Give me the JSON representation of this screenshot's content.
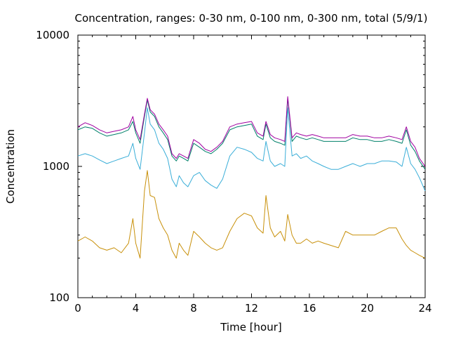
{
  "chart_data": {
    "type": "line",
    "title": "Concentration, ranges: 0-30 nm, 0-100 nm, 0-300 nm, total (5/9/1)",
    "xlabel": "Time [hour]",
    "ylabel": "Concentration",
    "xlim": [
      0,
      24
    ],
    "ylim": [
      100,
      10000
    ],
    "yscale": "log",
    "grid": false,
    "x_ticks": [
      "0",
      "4",
      "8",
      "12",
      "16",
      "20",
      "24"
    ],
    "y_ticks": [
      "100",
      "1000",
      "10000"
    ],
    "colors": [
      "#c8900a",
      "#3aaed8",
      "#00806a",
      "#a000a0"
    ],
    "x": [
      0,
      0.5,
      1,
      1.5,
      2,
      2.5,
      3,
      3.5,
      3.8,
      4,
      4.3,
      4.6,
      4.8,
      5,
      5.3,
      5.6,
      5.9,
      6.2,
      6.5,
      6.8,
      7,
      7.3,
      7.6,
      8,
      8.4,
      8.8,
      9.2,
      9.6,
      10,
      10.5,
      11,
      11.5,
      12,
      12.4,
      12.8,
      13,
      13.3,
      13.6,
      14,
      14.3,
      14.5,
      14.8,
      15.1,
      15.4,
      15.8,
      16.2,
      16.6,
      17,
      17.5,
      18,
      18.5,
      19,
      19.5,
      20,
      20.5,
      21,
      21.5,
      22,
      22.4,
      22.7,
      23,
      23.3,
      23.6,
      24
    ],
    "series": [
      {
        "values": [
          270,
          290,
          270,
          240,
          230,
          240,
          220,
          260,
          400,
          260,
          200,
          650,
          930,
          600,
          580,
          400,
          340,
          300,
          230,
          200,
          260,
          230,
          210,
          320,
          290,
          260,
          240,
          230,
          240,
          320,
          400,
          440,
          420,
          340,
          310,
          600,
          340,
          290,
          320,
          270,
          430,
          300,
          260,
          260,
          280,
          260,
          270,
          260,
          250,
          240,
          320,
          300,
          300,
          300,
          300,
          320,
          340,
          340,
          280,
          250,
          230,
          220,
          210,
          200
        ]
      },
      {
        "values": [
          1200,
          1250,
          1200,
          1120,
          1050,
          1100,
          1150,
          1200,
          1500,
          1150,
          950,
          1800,
          2800,
          2100,
          1900,
          1500,
          1350,
          1150,
          800,
          700,
          850,
          750,
          700,
          850,
          900,
          780,
          720,
          680,
          800,
          1200,
          1400,
          1350,
          1280,
          1150,
          1100,
          1550,
          1100,
          1000,
          1050,
          1000,
          2800,
          1200,
          1250,
          1150,
          1200,
          1100,
          1050,
          1000,
          950,
          950,
          1000,
          1050,
          1000,
          1050,
          1050,
          1100,
          1100,
          1080,
          1000,
          1400,
          1050,
          950,
          820,
          650
        ]
      },
      {
        "values": [
          1900,
          2000,
          1950,
          1800,
          1700,
          1750,
          1800,
          1900,
          2200,
          1800,
          1500,
          2400,
          3200,
          2600,
          2400,
          2000,
          1800,
          1600,
          1200,
          1100,
          1200,
          1150,
          1100,
          1500,
          1400,
          1300,
          1250,
          1350,
          1500,
          1900,
          2000,
          2050,
          2100,
          1700,
          1600,
          2100,
          1650,
          1550,
          1500,
          1450,
          3300,
          1550,
          1700,
          1650,
          1600,
          1650,
          1600,
          1550,
          1550,
          1550,
          1550,
          1650,
          1600,
          1600,
          1550,
          1550,
          1600,
          1550,
          1500,
          1900,
          1450,
          1300,
          1100,
          950
        ]
      },
      {
        "values": [
          2000,
          2150,
          2050,
          1900,
          1800,
          1850,
          1900,
          2000,
          2400,
          1900,
          1600,
          2500,
          3300,
          2700,
          2500,
          2100,
          1900,
          1700,
          1250,
          1150,
          1250,
          1200,
          1150,
          1600,
          1500,
          1350,
          1300,
          1400,
          1550,
          2000,
          2100,
          2150,
          2200,
          1800,
          1700,
          2200,
          1750,
          1650,
          1600,
          1550,
          3400,
          1650,
          1800,
          1750,
          1700,
          1750,
          1700,
          1650,
          1650,
          1650,
          1650,
          1750,
          1700,
          1700,
          1650,
          1650,
          1700,
          1650,
          1600,
          2000,
          1550,
          1400,
          1150,
          1000
        ]
      }
    ]
  }
}
